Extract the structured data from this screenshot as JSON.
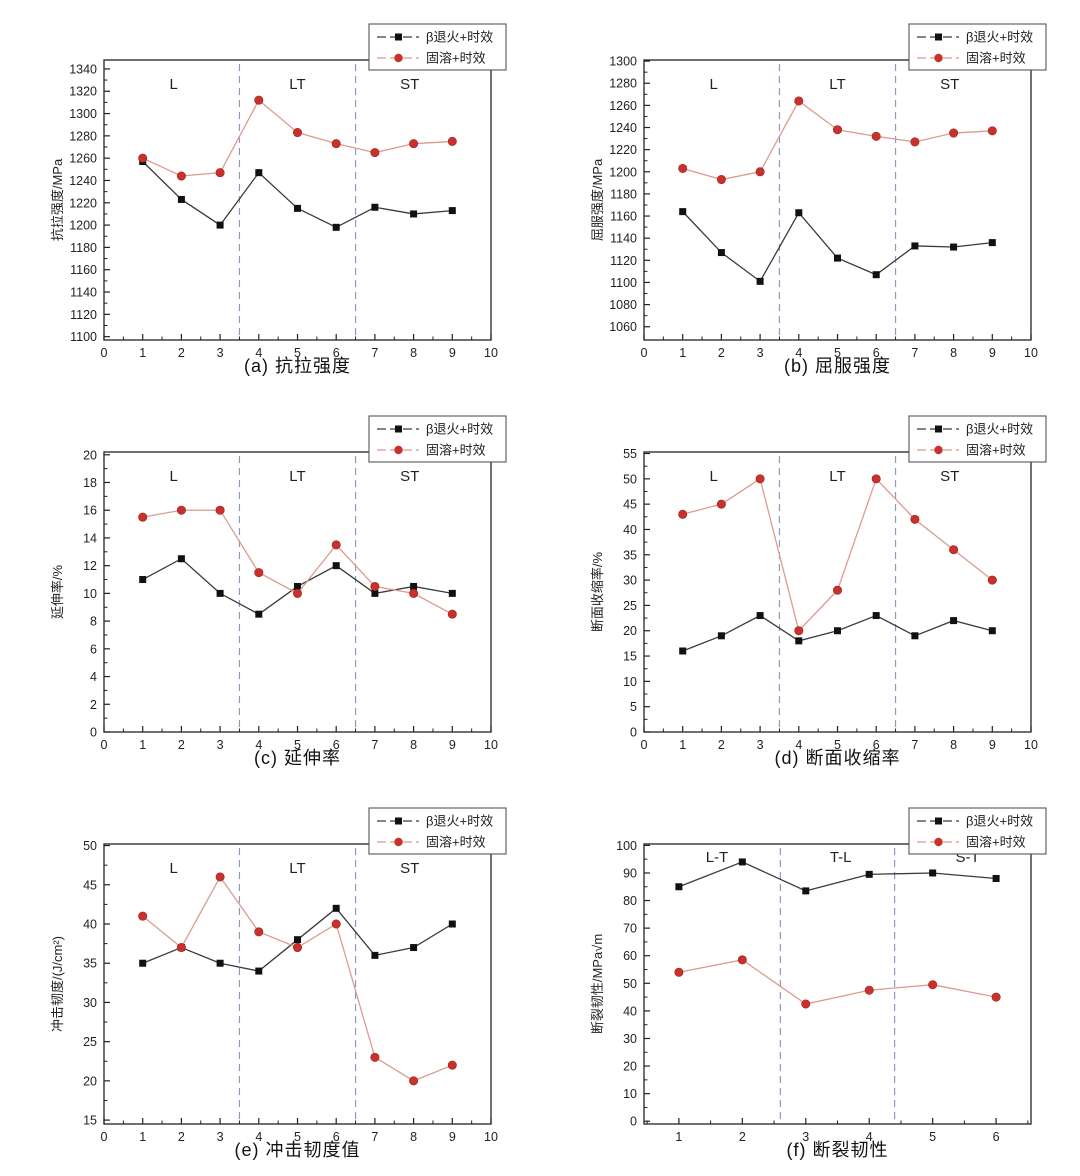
{
  "figure": {
    "legend_labels": [
      "β退火+时效",
      "固溶+时效"
    ],
    "colors": {
      "series1_line": "#3a3a3a",
      "series1_marker": "#111111",
      "series2_line": "#dc9b8e",
      "series2_marker": "#c9322c",
      "divider": "#8d9ac0",
      "axis": "#222222",
      "text": "#222222"
    }
  },
  "chart_data": [
    {
      "type": "line",
      "id": "a",
      "caption": "(a) 抗拉强度",
      "ylabel": "抗拉强度/MPa",
      "yticks": {
        "start": 1100,
        "end": 1340,
        "step": 20
      },
      "ylim": [
        1097,
        1348
      ],
      "xticks": {
        "start": 0,
        "end": 10,
        "step": 1
      },
      "xlim": [
        0,
        10
      ],
      "x": [
        1,
        2,
        3,
        4,
        5,
        6,
        7,
        8,
        9
      ],
      "dividers": [
        3.5,
        6.5
      ],
      "regions": [
        {
          "label": "L",
          "x": 1.8
        },
        {
          "label": "LT",
          "x": 5.0
        },
        {
          "label": "ST",
          "x": 7.9
        }
      ],
      "region_y_offset": 24,
      "series": [
        {
          "name": "β退火+时效",
          "marker": "square",
          "values": [
            1257,
            1223,
            1200,
            1247,
            1215,
            1198,
            1216,
            1210,
            1213
          ]
        },
        {
          "name": "固溶+时效",
          "marker": "circle",
          "values": [
            1260,
            1244,
            1247,
            1312,
            1283,
            1273,
            1265,
            1273,
            1275
          ]
        }
      ]
    },
    {
      "type": "line",
      "id": "b",
      "caption": "(b) 屈服强度",
      "ylabel": "屈服强度/MPa",
      "yticks": {
        "start": 1060,
        "end": 1300,
        "step": 20
      },
      "ylim": [
        1048,
        1301
      ],
      "xticks": {
        "start": 0,
        "end": 10,
        "step": 1
      },
      "xlim": [
        0,
        10
      ],
      "x": [
        1,
        2,
        3,
        4,
        5,
        6,
        7,
        8,
        9
      ],
      "dividers": [
        3.5,
        6.5
      ],
      "regions": [
        {
          "label": "L",
          "x": 1.8
        },
        {
          "label": "LT",
          "x": 5.0
        },
        {
          "label": "ST",
          "x": 7.9
        }
      ],
      "region_y_offset": 24,
      "series": [
        {
          "name": "β退火+时效",
          "marker": "square",
          "values": [
            1164,
            1127,
            1101,
            1163,
            1122,
            1107,
            1133,
            1132,
            1136
          ]
        },
        {
          "name": "固溶+时效",
          "marker": "circle",
          "values": [
            1203,
            1193,
            1200,
            1264,
            1238,
            1232,
            1227,
            1235,
            1237
          ]
        }
      ]
    },
    {
      "type": "line",
      "id": "c",
      "caption": "(c) 延伸率",
      "ylabel": "延伸率/%",
      "yticks": {
        "start": 0,
        "end": 20,
        "step": 2
      },
      "ylim": [
        0,
        20.2
      ],
      "xticks": {
        "start": 0,
        "end": 10,
        "step": 1
      },
      "xlim": [
        0,
        10
      ],
      "x": [
        1,
        2,
        3,
        4,
        5,
        6,
        7,
        8,
        9
      ],
      "dividers": [
        3.5,
        6.5
      ],
      "regions": [
        {
          "label": "L",
          "x": 1.8
        },
        {
          "label": "LT",
          "x": 5.0
        },
        {
          "label": "ST",
          "x": 7.9
        }
      ],
      "region_y_offset": 24,
      "series": [
        {
          "name": "β退火+时效",
          "marker": "square",
          "values": [
            11,
            12.5,
            10,
            8.5,
            10.5,
            12,
            10,
            10.5,
            10
          ]
        },
        {
          "name": "固溶+时效",
          "marker": "circle",
          "values": [
            15.5,
            16,
            16,
            11.5,
            10,
            13.5,
            10.5,
            10,
            8.5
          ]
        }
      ]
    },
    {
      "type": "line",
      "id": "d",
      "caption": "(d) 断面收缩率",
      "ylabel": "断面收缩率/%",
      "yticks": {
        "start": 0,
        "end": 55,
        "step": 5
      },
      "ylim": [
        0,
        55.3
      ],
      "xticks": {
        "start": 0,
        "end": 10,
        "step": 1
      },
      "xlim": [
        0,
        10
      ],
      "x": [
        1,
        2,
        3,
        4,
        5,
        6,
        7,
        8,
        9
      ],
      "dividers": [
        3.5,
        6.5
      ],
      "regions": [
        {
          "label": "L",
          "x": 1.8
        },
        {
          "label": "LT",
          "x": 5.0
        },
        {
          "label": "ST",
          "x": 7.9
        }
      ],
      "region_y_offset": 24,
      "series": [
        {
          "name": "β退火+时效",
          "marker": "square",
          "values": [
            16,
            19,
            23,
            18,
            20,
            23,
            19,
            22,
            20
          ]
        },
        {
          "name": "固溶+时效",
          "marker": "circle",
          "values": [
            43,
            45,
            50,
            20,
            28,
            50,
            42,
            36,
            30
          ]
        }
      ]
    },
    {
      "type": "line",
      "id": "e",
      "caption": "(e) 冲击韧度值",
      "ylabel": "冲击韧度/(J/cm²)",
      "yticks": {
        "start": 15,
        "end": 50,
        "step": 5
      },
      "ylim": [
        14.5,
        50.2
      ],
      "xticks": {
        "start": 0,
        "end": 10,
        "step": 1
      },
      "xlim": [
        0,
        10
      ],
      "x": [
        1,
        2,
        3,
        4,
        5,
        6,
        7,
        8,
        9
      ],
      "dividers": [
        3.5,
        6.5
      ],
      "regions": [
        {
          "label": "L",
          "x": 1.8
        },
        {
          "label": "LT",
          "x": 5.0
        },
        {
          "label": "ST",
          "x": 7.9
        }
      ],
      "region_y_offset": 24,
      "series": [
        {
          "name": "β退火+时效",
          "marker": "square",
          "values": [
            35,
            37,
            35,
            34,
            38,
            42,
            36,
            37,
            40
          ]
        },
        {
          "name": "固溶+时效",
          "marker": "circle",
          "values": [
            41,
            37,
            46,
            39,
            37,
            40,
            23,
            20,
            22
          ]
        }
      ]
    },
    {
      "type": "line",
      "id": "f",
      "caption": "(f) 断裂韧性",
      "ylabel": "断裂韧性/MPa√m",
      "yticks": {
        "start": 0,
        "end": 100,
        "step": 10
      },
      "ylim": [
        -1,
        100.5
      ],
      "xticks": {
        "start": 1,
        "end": 6,
        "step": 1
      },
      "xlim": [
        0.45,
        6.55
      ],
      "x": [
        1,
        2,
        3,
        4,
        5,
        6
      ],
      "dividers": [
        2.6,
        4.4
      ],
      "regions": [
        {
          "label": "L-T",
          "x": 1.6
        },
        {
          "label": "T-L",
          "x": 3.55
        },
        {
          "label": "S-T",
          "x": 5.55
        }
      ],
      "region_y_offset": 13,
      "series": [
        {
          "name": "β退火+时效",
          "marker": "square",
          "values": [
            85,
            94,
            83.5,
            89.5,
            90,
            88
          ]
        },
        {
          "name": "固溶+时效",
          "marker": "circle",
          "values": [
            54,
            58.5,
            42.5,
            47.5,
            49.5,
            45
          ]
        }
      ]
    }
  ]
}
